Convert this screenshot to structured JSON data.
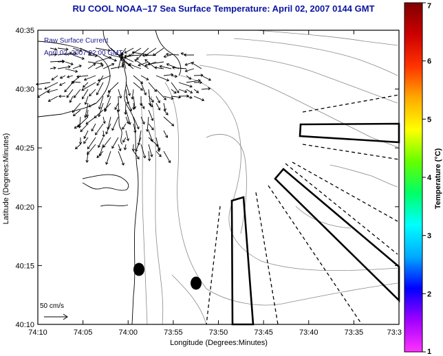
{
  "title": "RU COOL  NOAA–17  Sea Surface Temperature:  April 02, 2007 0144 GMT",
  "annotation": {
    "line1": "Raw Surface Current",
    "line2": "April 02, 2007 02:00 GMT"
  },
  "xlabel": "Longitude (Degrees:Minutes)",
  "ylabel": "Latitude (Degrees:Minutes)",
  "xticks": [
    "74:10",
    "74:05",
    "74:00",
    "73:55",
    "73:50",
    "73:45",
    "73:40",
    "73:35",
    "73:3"
  ],
  "yticks": [
    "40:35",
    "40:30",
    "40:25",
    "40:20",
    "40:15",
    "40:10"
  ],
  "scale_label": "50 cm/s",
  "colorbar": {
    "label": "Temperature (°C)",
    "ticks": [
      "7",
      "6",
      "5",
      "4",
      "3",
      "2",
      "1"
    ],
    "colors": [
      "#ff33ff",
      "#a000ff",
      "#0000ff",
      "#00aaff",
      "#00ffff",
      "#00ff66",
      "#66ff00",
      "#ffff00",
      "#ffaa00",
      "#ff3300",
      "#cc0000",
      "#800000"
    ]
  },
  "map_features": {
    "vector_field": "surface-current-arrows",
    "restricted_zones": 3,
    "dashed_sectors": true,
    "buoys": 2
  }
}
